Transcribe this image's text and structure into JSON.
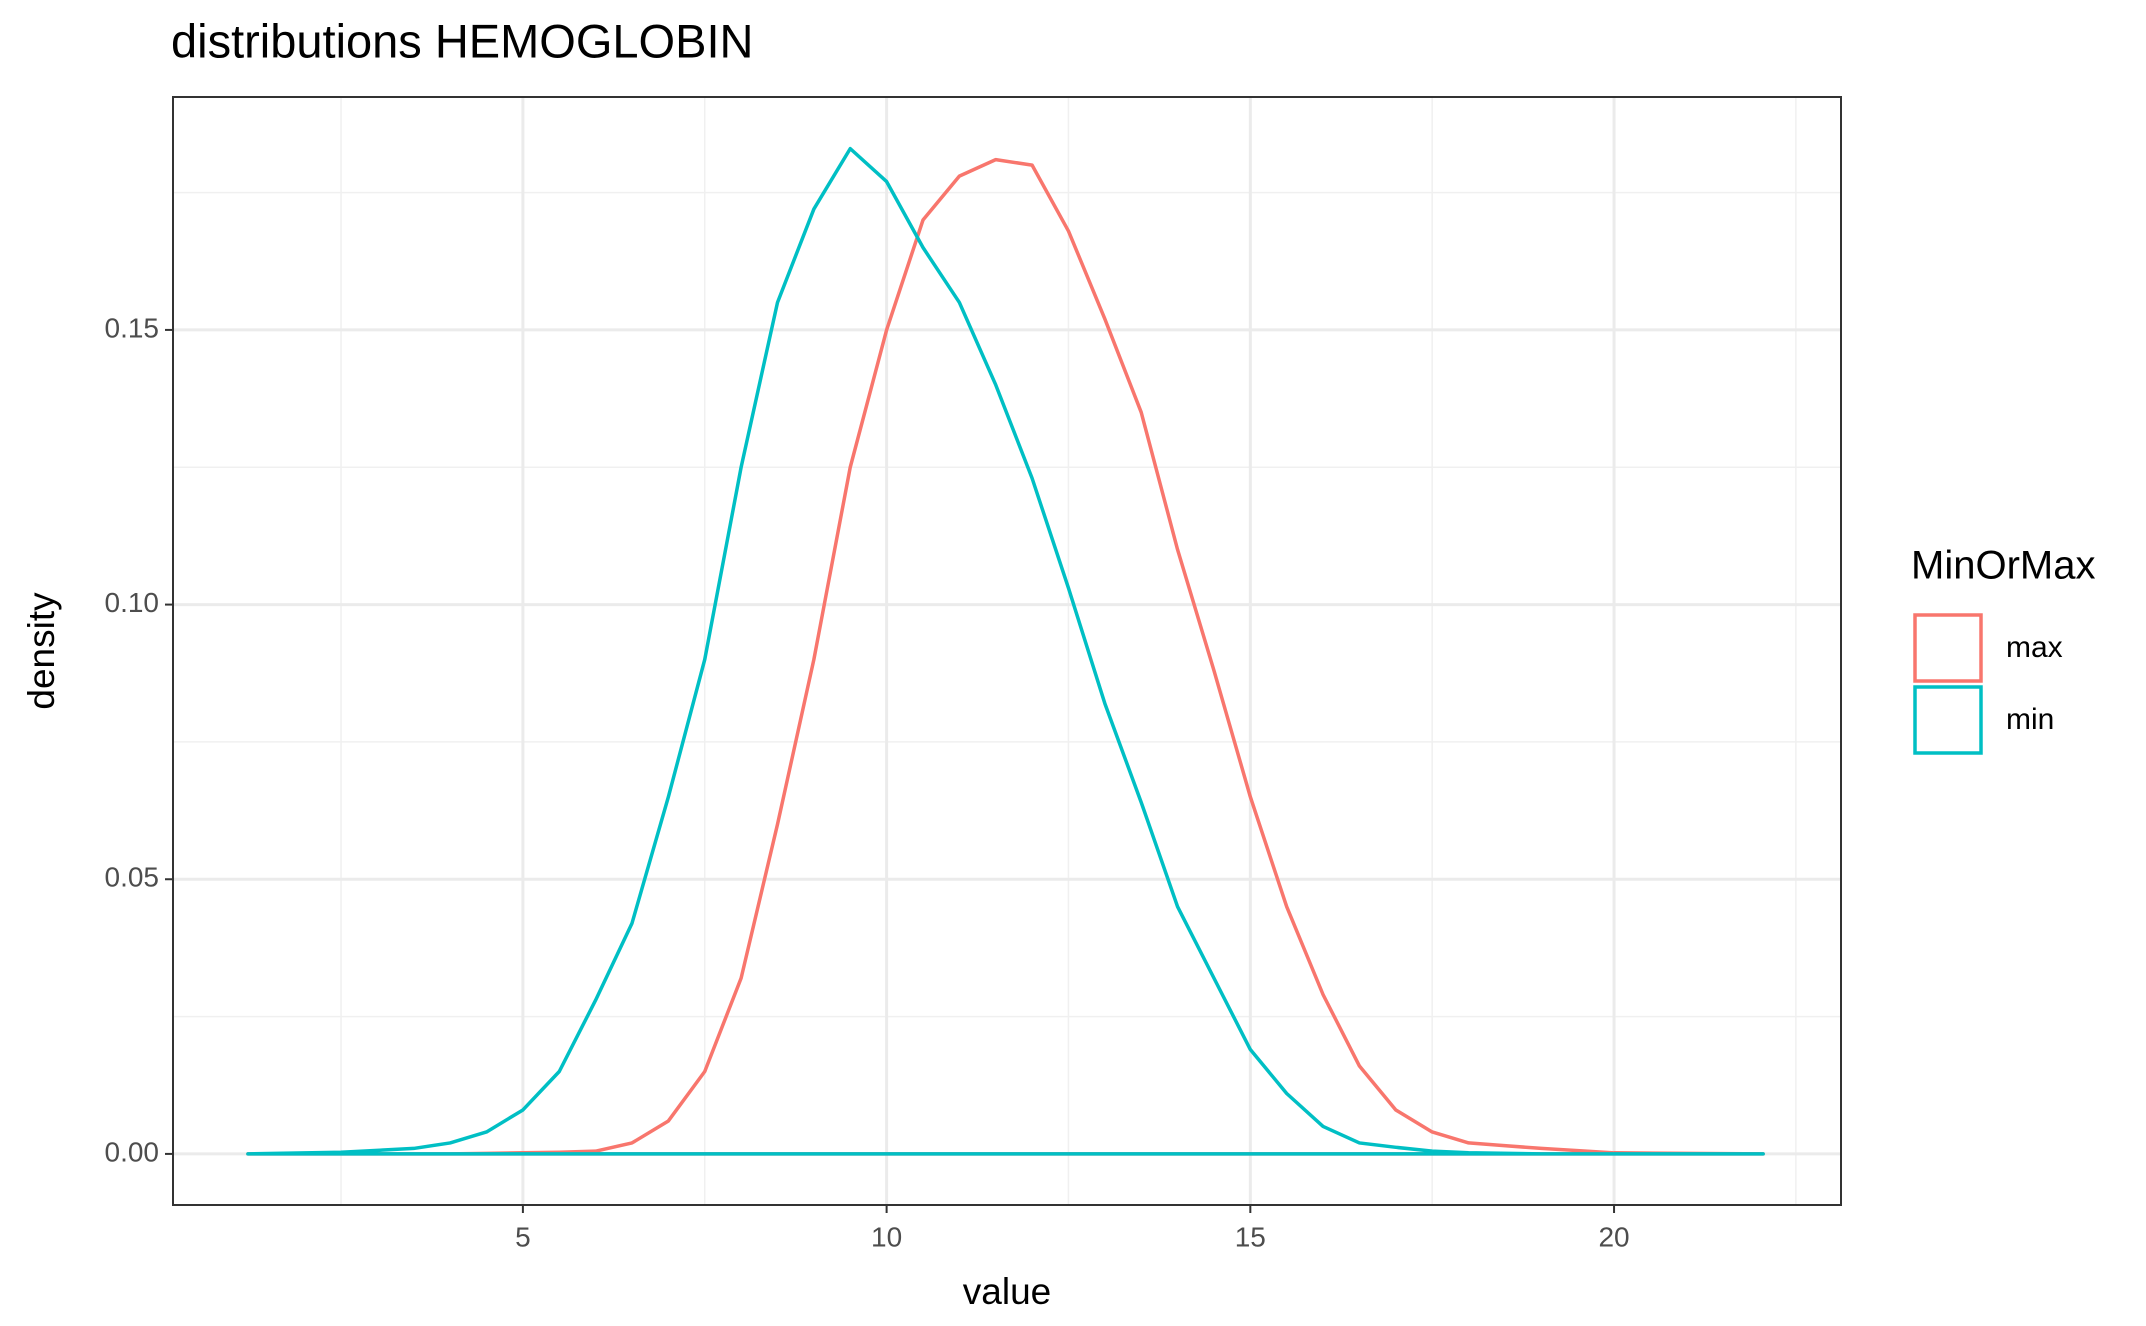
{
  "chart_data": {
    "type": "line",
    "title": "distributions HEMOGLOBIN",
    "x_label": "value",
    "y_label": "density",
    "legend_title": "MinOrMax",
    "legend": "right",
    "grid": true,
    "x": [
      1.22,
      2.5,
      3.5,
      4,
      4.5,
      5,
      5.5,
      6,
      6.5,
      7,
      7.5,
      8,
      8.5,
      9,
      9.5,
      10,
      10.5,
      11,
      11.5,
      12,
      12.5,
      13,
      13.5,
      14,
      14.5,
      15,
      15.5,
      16,
      16.5,
      17,
      17.5,
      18,
      19,
      20,
      21,
      22.05
    ],
    "series": [
      {
        "name": "max",
        "color": "#F8766D",
        "values": [
          0,
          0,
          0,
          0,
          0.0001,
          0.0002,
          0.0003,
          0.0005,
          0.002,
          0.006,
          0.015,
          0.032,
          0.06,
          0.09,
          0.125,
          0.15,
          0.17,
          0.178,
          0.181,
          0.18,
          0.168,
          0.152,
          0.135,
          0.11,
          0.088,
          0.065,
          0.045,
          0.029,
          0.016,
          0.008,
          0.004,
          0.002,
          0.001,
          0.0002,
          0.0001,
          0
        ]
      },
      {
        "name": "min",
        "color": "#00BFC4",
        "values": [
          0,
          0.0003,
          0.001,
          0.002,
          0.004,
          0.008,
          0.015,
          0.028,
          0.042,
          0.065,
          0.09,
          0.125,
          0.155,
          0.172,
          0.183,
          0.177,
          0.165,
          0.155,
          0.14,
          0.123,
          0.103,
          0.082,
          0.064,
          0.045,
          0.032,
          0.019,
          0.011,
          0.005,
          0.002,
          0.0012,
          0.0005,
          0.0002,
          0,
          0,
          0,
          0
        ]
      }
    ],
    "xlim": [
      0.19,
      23.12
    ],
    "xticks": [
      5,
      10,
      15,
      20
    ],
    "ylim": [
      -0.0093,
      0.1924
    ],
    "yticks": [
      {
        "value": 0,
        "label": "0.00"
      },
      0.05,
      {
        "value": 0.1,
        "label": "0.10"
      },
      0.15
    ]
  }
}
